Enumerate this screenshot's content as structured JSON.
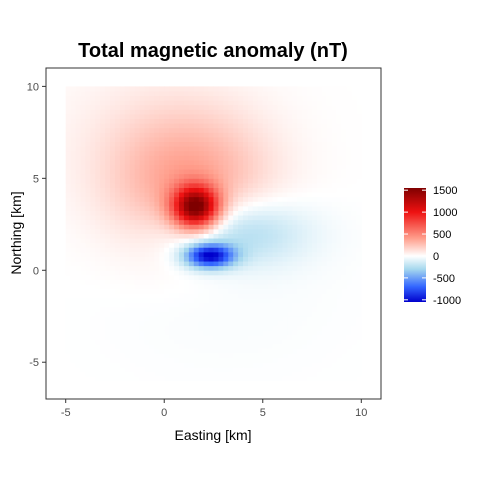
{
  "chart_data": {
    "type": "heatmap",
    "title": "Total magnetic anomaly (nT)",
    "xlabel": "Easting [km]",
    "ylabel": "Northing [km]",
    "xlim": [
      -6,
      11
    ],
    "ylim": [
      -7,
      11
    ],
    "x_ticks": [
      -5,
      0,
      5,
      10
    ],
    "y_ticks": [
      -5,
      0,
      5,
      10
    ],
    "grid": false,
    "legend_placement": "right",
    "colorbar": {
      "min": -1050,
      "max": 1550,
      "ticks": [
        1500,
        1000,
        500,
        0,
        -500,
        -1000
      ],
      "stops": [
        {
          "value": -1050,
          "color": "#0000cc"
        },
        {
          "value": -700,
          "color": "#3366ff"
        },
        {
          "value": -300,
          "color": "#a6d8ee"
        },
        {
          "value": 0,
          "color": "#ffffff"
        },
        {
          "value": 400,
          "color": "#ff9e8c"
        },
        {
          "value": 1000,
          "color": "#ee1111"
        },
        {
          "value": 1550,
          "color": "#7f0000"
        }
      ]
    },
    "grid_extent": {
      "x": [
        -5,
        10
      ],
      "y": [
        -6,
        10
      ],
      "step": 0.25
    },
    "sources": [
      {
        "x": 1.6,
        "y": 3.45,
        "amplitude": 1450,
        "sx": 0.8,
        "sy": 0.78
      },
      {
        "x": 2.3,
        "y": 0.8,
        "amplitude": -1000,
        "sx": 0.85,
        "sy": 0.45
      },
      {
        "x": 1.2,
        "y": 4.8,
        "amplitude": 380,
        "sx": 2.8,
        "sy": 2.6
      },
      {
        "x": -0.8,
        "y": 7.8,
        "amplitude": 55,
        "sx": 3.8,
        "sy": 2.6
      },
      {
        "x": 3.6,
        "y": 2.1,
        "amplitude": -340,
        "sx": 2.4,
        "sy": 1.3
      },
      {
        "x": 3.0,
        "y": -1.0,
        "amplitude": -25,
        "sx": 4.0,
        "sy": 3.0
      }
    ]
  }
}
